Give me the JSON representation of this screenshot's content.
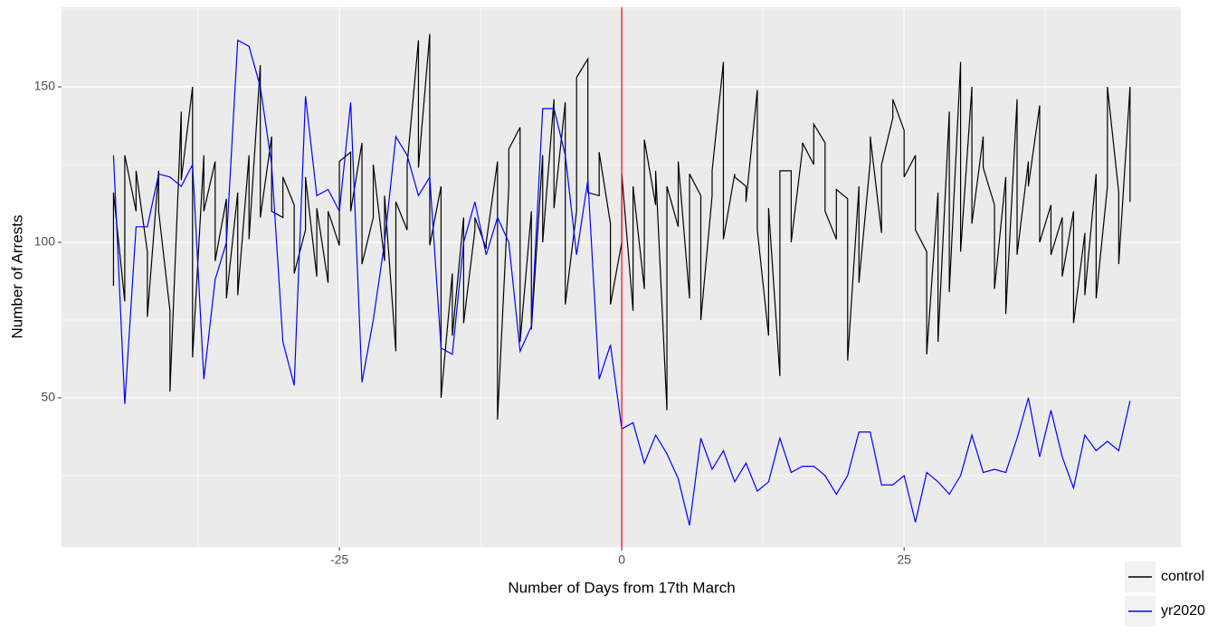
{
  "chart_data": {
    "type": "line",
    "x_label": "Number of Days from 17th March",
    "y_label": "Number of Arrests",
    "xlim": [
      -49.6,
      49.5
    ],
    "xticks": [
      -25,
      0,
      25
    ],
    "ylim": [
      2,
      175.6
    ],
    "yticks": [
      50,
      100,
      150
    ],
    "grid": true,
    "legend": "bottom-right",
    "vline": {
      "value": 0,
      "color": "#ff0000"
    },
    "series": [
      {
        "name": "control",
        "color": "#000000",
        "x": [
          -45,
          -45,
          -44,
          -44,
          -43,
          -43,
          -42,
          -42,
          -41,
          -41,
          -40,
          -40,
          -39,
          -39,
          -38,
          -38,
          -37,
          -37,
          -36,
          -36,
          -35,
          -35,
          -34,
          -34,
          -33,
          -33,
          -32,
          -32,
          -31,
          -31,
          -30,
          -30,
          -29,
          -29,
          -28,
          -28,
          -27,
          -27,
          -26,
          -26,
          -25,
          -25,
          -24,
          -24,
          -23,
          -23,
          -22,
          -22,
          -21,
          -21,
          -20,
          -20,
          -19,
          -19,
          -18,
          -18,
          -17,
          -17,
          -16,
          -16,
          -15,
          -15,
          -14,
          -14,
          -13,
          -13,
          -12,
          -12,
          -11,
          -11,
          -10,
          -10,
          -9,
          -9,
          -8,
          -8,
          -7,
          -7,
          -6,
          -6,
          -5,
          -5,
          -4,
          -4,
          -3,
          -3,
          -2,
          -2,
          -1,
          -1,
          0,
          0,
          1,
          1,
          2,
          2,
          3,
          3,
          4,
          4,
          5,
          5,
          6,
          6,
          7,
          7,
          8,
          8,
          9,
          9,
          10,
          10,
          11,
          11,
          12,
          12,
          13,
          13,
          14,
          14,
          15,
          15,
          16,
          16,
          17,
          17,
          18,
          18,
          19,
          19,
          20,
          20,
          21,
          21,
          22,
          22,
          23,
          23,
          24,
          24,
          25,
          25,
          26,
          26,
          27,
          27,
          28,
          28,
          29,
          29,
          30,
          30,
          31,
          31,
          32,
          32,
          33,
          33,
          34,
          34,
          35,
          35,
          36,
          36,
          37,
          37,
          38,
          38,
          39,
          39,
          40,
          40,
          41,
          41,
          42,
          42,
          43,
          43,
          44,
          44,
          45,
          45
        ],
        "values": [
          86,
          116,
          81,
          128,
          110,
          123,
          97,
          76,
          123,
          110,
          78,
          52,
          142,
          120,
          150,
          63,
          128,
          110,
          126,
          94,
          114,
          82,
          116,
          83,
          128,
          101,
          157,
          108,
          134,
          110,
          108,
          121,
          112,
          90,
          104,
          121,
          89,
          111,
          87,
          110,
          99,
          126,
          129,
          110,
          132,
          93,
          108,
          125,
          94,
          115,
          65,
          113,
          104,
          125,
          165,
          124,
          167,
          99,
          118,
          50,
          90,
          70,
          108,
          74,
          104,
          108,
          98,
          100,
          126,
          43,
          118,
          130,
          137,
          68,
          110,
          72,
          128,
          100,
          146,
          111,
          145,
          80,
          110,
          153,
          159,
          116,
          115,
          129,
          106,
          80,
          100,
          122,
          78,
          118,
          85,
          133,
          112,
          123,
          46,
          118,
          105,
          126,
          82,
          122,
          115,
          75,
          115,
          123,
          158,
          101,
          122,
          121,
          118,
          113,
          149,
          104,
          70,
          111,
          57,
          123,
          123,
          100,
          130,
          132,
          125,
          138,
          132,
          110,
          101,
          117,
          114,
          62,
          118,
          87,
          126,
          134,
          103,
          125,
          140,
          146,
          136,
          121,
          128,
          104,
          97,
          64,
          116,
          68,
          142,
          84,
          158,
          97,
          150,
          106,
          134,
          124,
          112,
          85,
          121,
          77,
          146,
          96,
          126,
          118,
          144,
          100,
          112,
          96,
          108,
          89,
          110,
          74,
          103,
          83,
          122,
          82,
          118,
          150,
          116,
          93,
          150,
          113
        ]
      },
      {
        "name": "yr2020",
        "color": "#0000ff",
        "x": [
          -45,
          -44,
          -43,
          -42,
          -41,
          -40,
          -39,
          -38,
          -37,
          -36,
          -35,
          -34,
          -33,
          -32,
          -31,
          -30,
          -29,
          -28,
          -27,
          -26,
          -25,
          -24,
          -23,
          -22,
          -21,
          -20,
          -19,
          -18,
          -17,
          -16,
          -15,
          -14,
          -13,
          -12,
          -11,
          -10,
          -9,
          -8,
          -7,
          -6,
          -5,
          -4,
          -3,
          -2,
          -1,
          0,
          1,
          2,
          3,
          4,
          5,
          6,
          7,
          8,
          9,
          10,
          11,
          12,
          13,
          14,
          15,
          16,
          17,
          18,
          19,
          20,
          21,
          22,
          23,
          24,
          25,
          26,
          27,
          28,
          29,
          30,
          31,
          32,
          33,
          34,
          35,
          36,
          37,
          38,
          39,
          40,
          41,
          42,
          43,
          44,
          45
        ],
        "values": [
          128,
          48,
          105,
          105,
          122,
          121,
          118,
          125,
          56,
          88,
          100,
          165,
          163,
          150,
          125,
          68,
          54,
          147,
          115,
          117,
          110,
          145,
          55,
          75,
          100,
          134,
          128,
          115,
          121,
          66,
          64,
          100,
          113,
          96,
          108,
          100,
          65,
          73,
          143,
          143,
          128,
          96,
          120,
          56,
          67,
          40,
          42,
          29,
          38,
          32,
          24,
          9,
          37,
          27,
          33,
          23,
          29,
          20,
          23,
          37,
          26,
          28,
          28,
          25,
          19,
          25,
          39,
          39,
          22,
          22,
          25,
          10,
          26,
          23,
          19,
          25,
          38,
          26,
          27,
          26,
          37,
          50,
          31,
          46,
          31,
          21,
          38,
          33,
          36,
          33,
          49
        ]
      }
    ]
  }
}
